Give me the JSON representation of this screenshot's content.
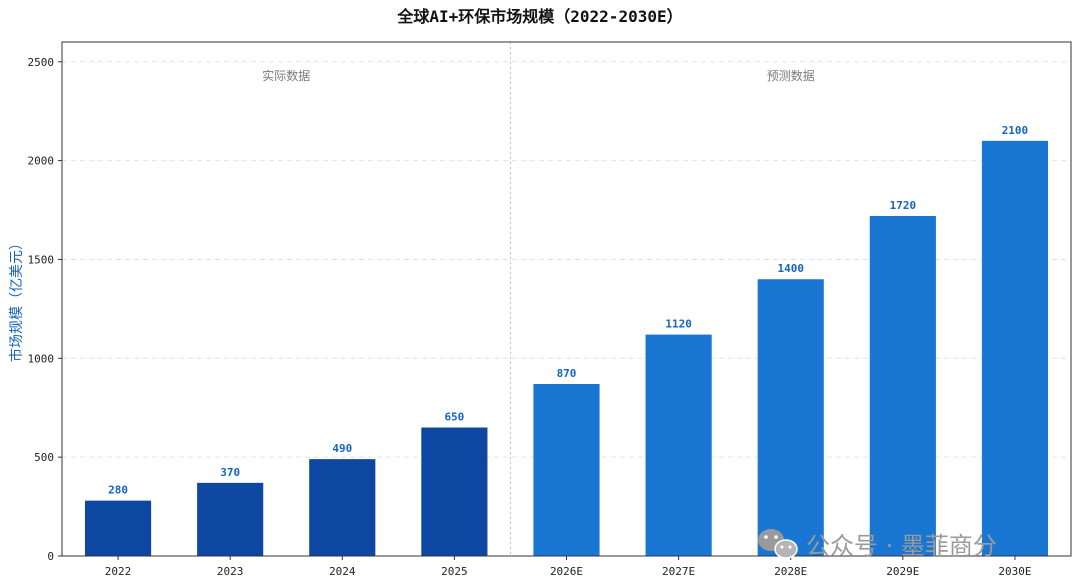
{
  "chart_data": {
    "type": "bar",
    "title": "全球AI+环保市场规模（2022-2030E）",
    "ylabel": "市场规模（亿美元）",
    "xlabel": "",
    "categories": [
      "2022",
      "2023",
      "2024",
      "2025",
      "2026E",
      "2027E",
      "2028E",
      "2029E",
      "2030E"
    ],
    "values": [
      280,
      370,
      490,
      650,
      870,
      1120,
      1400,
      1720,
      2100
    ],
    "data_labels": [
      "280",
      "370",
      "490",
      "650",
      "870",
      "1120",
      "1400",
      "1720",
      "2100"
    ],
    "ylim": [
      0,
      2600
    ],
    "yticks": [
      0,
      500,
      1000,
      1500,
      2000,
      2500
    ],
    "grid": true,
    "sections": [
      {
        "label": "实际数据",
        "categories": [
          "2022",
          "2023",
          "2024",
          "2025"
        ],
        "color": "#0d47a1"
      },
      {
        "label": "预测数据",
        "categories": [
          "2026E",
          "2027E",
          "2028E",
          "2029E",
          "2030E"
        ],
        "color": "#1976d2"
      }
    ],
    "label_color": "#1565c0"
  },
  "watermark": {
    "text": "公众号 · 墨菲商分",
    "icon": "wechat-icon"
  }
}
